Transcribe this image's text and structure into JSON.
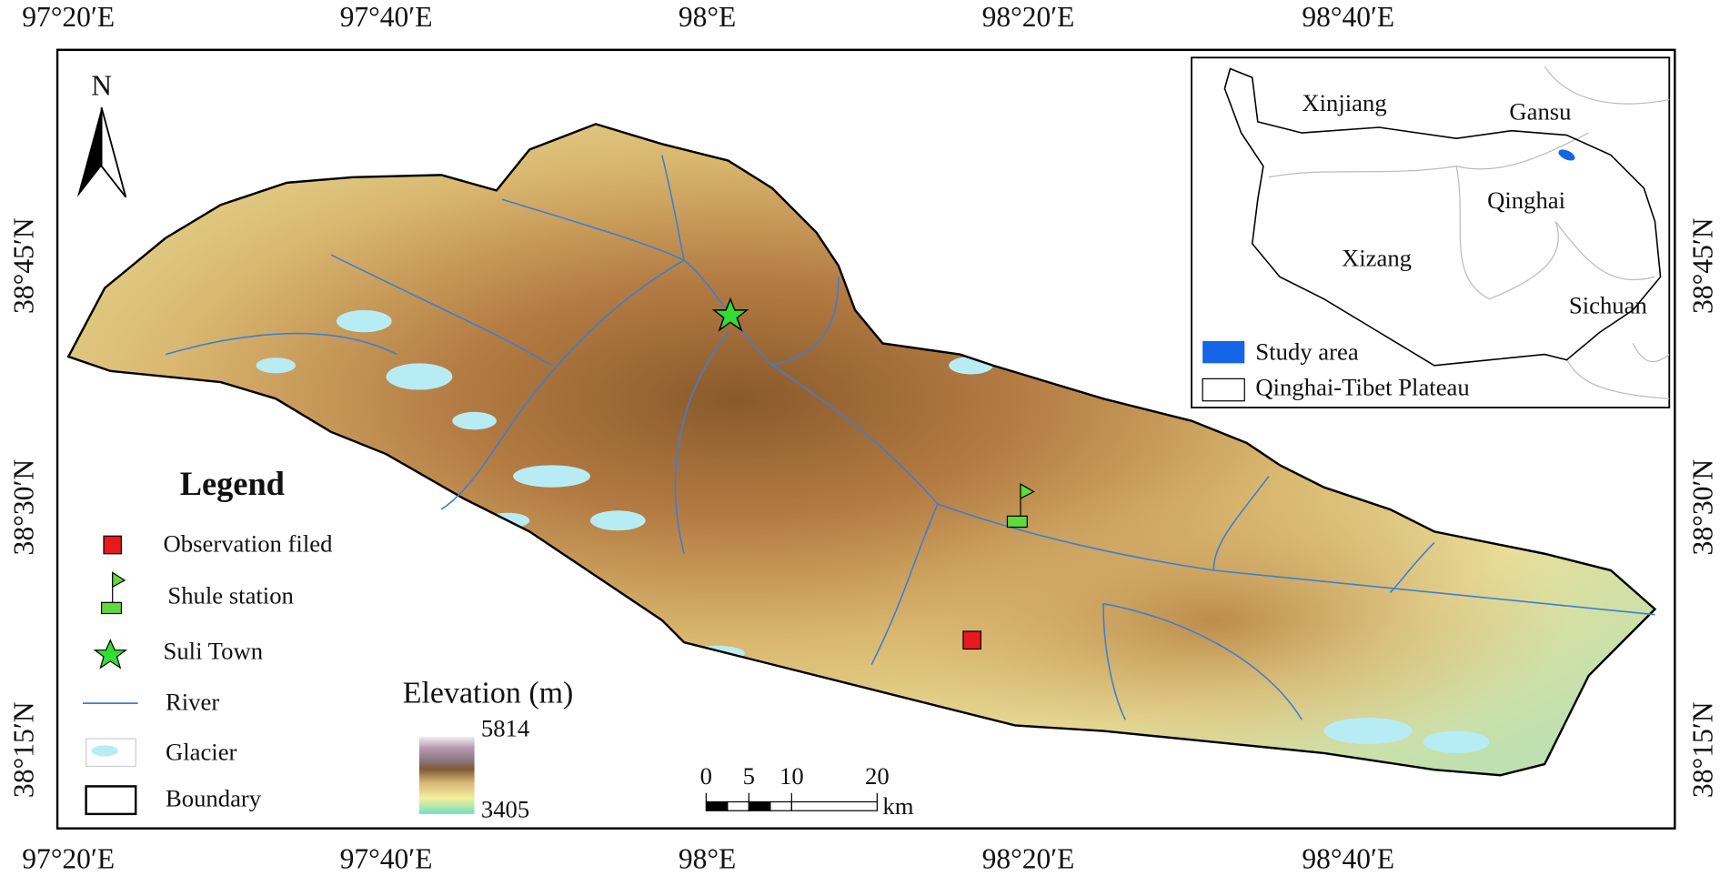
{
  "map": {
    "lon_labels": [
      "97°20′E",
      "97°40′E",
      "98°E",
      "98°20′E",
      "98°40′E"
    ],
    "lat_labels": [
      "38°45′N",
      "38°30′N",
      "38°15′N"
    ],
    "north": "N",
    "inset": {
      "regions": [
        "Xinjiang",
        "Gansu",
        "Qinghai",
        "Xizang",
        "Sichuan"
      ],
      "legend": [
        "Study area",
        "Qinghai-Tibet Plateau"
      ]
    },
    "legend": {
      "title": "Legend",
      "items": [
        "Observation filed",
        "Shule station",
        "Suli Town",
        "River",
        "Glacier",
        "Boundary"
      ]
    },
    "elevation": {
      "title": "Elevation (m)",
      "max": 5814,
      "min": 3405
    },
    "scale_bar": {
      "ticks": [
        0,
        5,
        10,
        20
      ],
      "unit": "km"
    }
  }
}
